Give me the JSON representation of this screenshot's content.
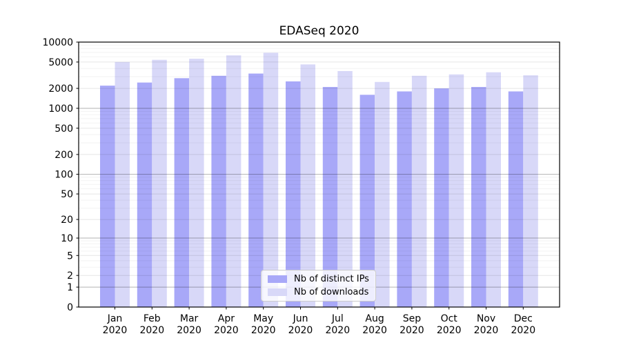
{
  "chart_data": {
    "type": "bar",
    "title": "EDASeq 2020",
    "categories": [
      "Jan 2020",
      "Feb 2020",
      "Mar 2020",
      "Apr 2020",
      "May 2020",
      "Jun 2020",
      "Jul 2020",
      "Aug 2020",
      "Sep 2020",
      "Oct 2020",
      "Nov 2020",
      "Dec 2020"
    ],
    "series": [
      {
        "name": "Nb of distinct IPs",
        "color": "#a8a8f8",
        "values": [
          2200,
          2450,
          2850,
          3100,
          3350,
          2550,
          2100,
          1600,
          1800,
          2000,
          2100,
          1800
        ]
      },
      {
        "name": "Nb of downloads",
        "color": "#d8d8f8",
        "values": [
          5000,
          5400,
          5600,
          6300,
          6900,
          4600,
          3650,
          2500,
          3100,
          3250,
          3500,
          3150
        ]
      }
    ],
    "y_ticks": [
      0,
      1,
      2,
      5,
      10,
      20,
      50,
      100,
      200,
      500,
      1000,
      2000,
      5000,
      10000
    ],
    "y_scale": "log1p",
    "ylim": [
      0,
      10000
    ],
    "xlabel": "",
    "ylabel": "",
    "grid": true,
    "legend_position": "lower center",
    "colors": {
      "axis": "#000000",
      "grid_decade": "rgba(0,0,0,0.30)",
      "grid_labeled": "rgba(0,0,0,0.10)",
      "grid_minor": "rgba(0,0,0,0.05)",
      "tick_label": "#000000"
    }
  }
}
